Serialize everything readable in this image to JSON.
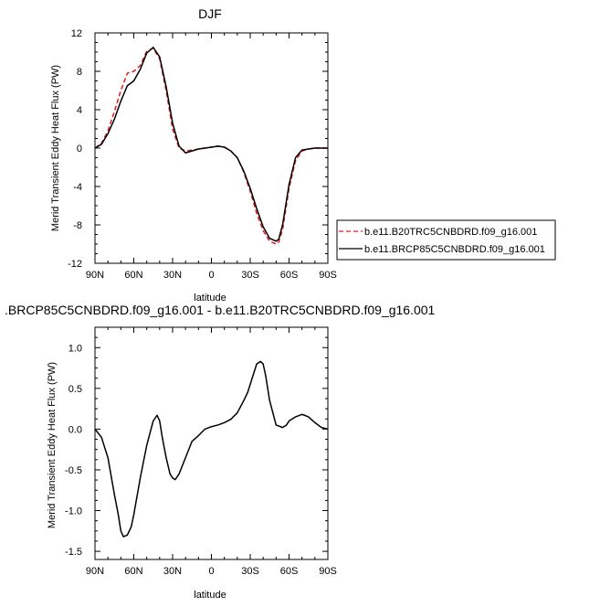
{
  "chart_data": [
    {
      "type": "line",
      "title": "DJF",
      "xlabel": "latitude",
      "ylabel": "Merid Transient Eddy Heat Flux (PW)",
      "xlim": [
        90,
        -90
      ],
      "ylim": [
        -12,
        12
      ],
      "xticks": [
        90,
        60,
        30,
        0,
        -30,
        -60,
        -90
      ],
      "xtick_labels": [
        "90N",
        "60N",
        "30N",
        "0",
        "30S",
        "60S",
        "90S"
      ],
      "yticks": [
        12,
        8,
        4,
        0,
        -4,
        -8,
        -12
      ],
      "ytick_labels": [
        "12",
        "8",
        "4",
        "0",
        "-4",
        "-8",
        "-12"
      ],
      "legend_position": "right",
      "series": [
        {
          "name": "b.e11.B20TRC5CNBDRD.f09_g16.001",
          "style": "dashed",
          "color": "#e41a1c",
          "x": [
            90,
            85,
            80,
            75,
            70,
            65,
            60,
            55,
            50,
            45,
            40,
            35,
            30,
            25,
            20,
            15,
            10,
            5,
            0,
            -5,
            -10,
            -15,
            -20,
            -25,
            -30,
            -35,
            -40,
            -45,
            -50,
            -52,
            -55,
            -60,
            -65,
            -70,
            -75,
            -80,
            -85,
            -90
          ],
          "y": [
            0.0,
            0.5,
            1.8,
            3.8,
            6.0,
            7.8,
            8.0,
            8.6,
            10.1,
            10.4,
            9.3,
            6.0,
            2.0,
            0.0,
            -0.3,
            -0.2,
            -0.1,
            0.0,
            0.1,
            0.2,
            0.1,
            -0.3,
            -1.0,
            -2.5,
            -4.5,
            -6.8,
            -8.6,
            -9.7,
            -10.0,
            -9.8,
            -8.5,
            -4.2,
            -1.3,
            -0.3,
            -0.1,
            0.0,
            0.0,
            0.0
          ]
        },
        {
          "name": "b.e11.BRCP85C5CNBDRD.f09_g16.001",
          "style": "solid",
          "color": "#000000",
          "x": [
            90,
            85,
            80,
            75,
            70,
            65,
            60,
            55,
            50,
            45,
            40,
            35,
            30,
            25,
            20,
            15,
            10,
            5,
            0,
            -5,
            -10,
            -15,
            -20,
            -25,
            -30,
            -35,
            -40,
            -45,
            -50,
            -52,
            -55,
            -60,
            -65,
            -70,
            -75,
            -80,
            -85,
            -90
          ],
          "y": [
            0.0,
            0.4,
            1.5,
            3.0,
            4.9,
            6.5,
            7.0,
            8.2,
            9.9,
            10.5,
            9.5,
            6.4,
            2.6,
            0.2,
            -0.5,
            -0.3,
            -0.1,
            0.0,
            0.1,
            0.2,
            0.1,
            -0.3,
            -1.0,
            -2.4,
            -4.2,
            -6.3,
            -8.2,
            -9.4,
            -9.7,
            -9.5,
            -8.0,
            -3.8,
            -1.0,
            -0.2,
            -0.1,
            0.0,
            0.0,
            0.0
          ]
        }
      ],
      "legend": [
        {
          "label": "b.e11.B20TRC5CNBDRD.f09_g16.001",
          "style": "dashed",
          "color": "#e41a1c"
        },
        {
          "label": "b.e11.BRCP85C5CNBDRD.f09_g16.001",
          "style": "solid",
          "color": "#000000"
        }
      ]
    },
    {
      "type": "line",
      "title": ".BRCP85C5CNBDRD.f09_g16.001 - b.e11.B20TRC5CNBDRD.f09_g16.001",
      "xlabel": "latitude",
      "ylabel": "Merid Transient Eddy Heat Flux (PW)",
      "xlim": [
        90,
        -90
      ],
      "ylim": [
        -1.6,
        1.25
      ],
      "xticks": [
        90,
        60,
        30,
        0,
        -30,
        -60,
        -90
      ],
      "xtick_labels": [
        "90N",
        "60N",
        "30N",
        "0",
        "30S",
        "60S",
        "90S"
      ],
      "yticks": [
        1.0,
        0.5,
        0.0,
        -0.5,
        -1.0,
        -1.5
      ],
      "ytick_labels": [
        "1.0",
        "0.5",
        "0.0",
        "-0.5",
        "-1.0",
        "-1.5"
      ],
      "series": [
        {
          "style": "solid",
          "color": "#000000",
          "x": [
            90,
            85,
            80,
            75,
            72,
            70,
            68,
            65,
            62,
            60,
            55,
            50,
            45,
            42,
            40,
            38,
            35,
            32,
            30,
            28,
            25,
            20,
            15,
            10,
            5,
            0,
            -5,
            -10,
            -15,
            -20,
            -25,
            -28,
            -30,
            -35,
            -38,
            -40,
            -42,
            -45,
            -50,
            -55,
            -58,
            -60,
            -65,
            -70,
            -72,
            -75,
            -80,
            -85,
            -90
          ],
          "y": [
            0.0,
            -0.1,
            -0.35,
            -0.8,
            -1.05,
            -1.25,
            -1.32,
            -1.3,
            -1.2,
            -1.05,
            -0.6,
            -0.2,
            0.1,
            0.17,
            0.1,
            -0.1,
            -0.35,
            -0.55,
            -0.6,
            -0.62,
            -0.55,
            -0.35,
            -0.15,
            -0.08,
            0.0,
            0.03,
            0.05,
            0.08,
            0.12,
            0.2,
            0.35,
            0.45,
            0.55,
            0.8,
            0.83,
            0.8,
            0.65,
            0.35,
            0.05,
            0.02,
            0.05,
            0.1,
            0.15,
            0.18,
            0.17,
            0.15,
            0.08,
            0.02,
            0.0
          ]
        }
      ]
    }
  ]
}
